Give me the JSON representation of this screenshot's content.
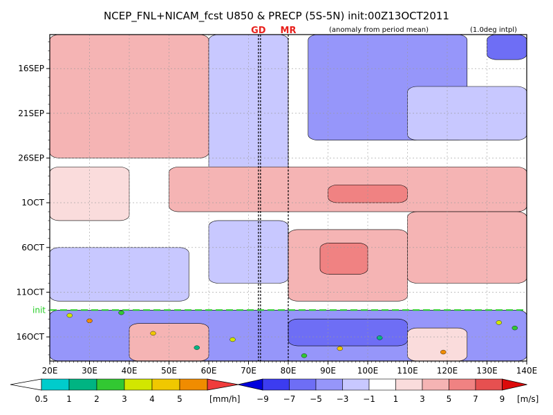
{
  "chart_data": {
    "type": "heatmap",
    "title": "NCEP_FNL+NICAM_fcst U850 & PRECP (5S-5N) init:00Z13OCT2011",
    "subtitle": "(anomaly from period mean)",
    "note": "(1.0deg intpl)",
    "x_ticks": [
      "20E",
      "30E",
      "40E",
      "50E",
      "60E",
      "70E",
      "80E",
      "90E",
      "100E",
      "110E",
      "120E",
      "130E",
      "140E"
    ],
    "x_range": [
      20,
      140
    ],
    "y_ticks": [
      "16SEP",
      "21SEP",
      "26SEP",
      "1OCT",
      "6OCT",
      "11OCT",
      "16OCT"
    ],
    "y_range_days": [
      12.2,
      48.7
    ],
    "y_tick_days": [
      16,
      21,
      26,
      31,
      36,
      41,
      46
    ],
    "init_label": "init",
    "init_day": 43,
    "markers": [
      {
        "label": "GD",
        "x": 72.5
      },
      {
        "label": "MR",
        "x": 80
      }
    ],
    "precip_colorbar": {
      "labels": [
        "0.5",
        "1",
        "2",
        "3",
        "4",
        "5"
      ],
      "unit": "[mm/h]",
      "colors": [
        "#00cccc",
        "#00b482",
        "#32c832",
        "#d2e600",
        "#f0c800",
        "#f08c00",
        "#f03c3c"
      ]
    },
    "wind_colorbar": {
      "labels": [
        "−9",
        "−7",
        "−5",
        "−3",
        "−1",
        "1",
        "3",
        "5",
        "7",
        "9"
      ],
      "unit": "[m/s]",
      "colors": [
        "#0000dc",
        "#3c3cf0",
        "#6e6ef5",
        "#9696fa",
        "#c8c8ff",
        "#ffffff",
        "#fadcdc",
        "#f5b4b4",
        "#f08282",
        "#e65050",
        "#dc0a0a"
      ]
    },
    "colors": {
      "init_line": "#22cc22",
      "marker_line": "#000000",
      "marker_label": "#e8201c"
    },
    "regions": [
      {
        "x1": 20,
        "x2": 140,
        "d1": 12.2,
        "d2": 48.7,
        "v": 0
      },
      {
        "x1": 20,
        "x2": 60,
        "d1": 12.2,
        "d2": 26,
        "v": 3
      },
      {
        "x1": 85,
        "x2": 125,
        "d1": 12.2,
        "d2": 24,
        "v": -4
      },
      {
        "x1": 130,
        "x2": 140,
        "d1": 12.2,
        "d2": 15,
        "v": -6
      },
      {
        "x1": 60,
        "x2": 80,
        "d1": 12.2,
        "d2": 28,
        "v": -3
      },
      {
        "x1": 110,
        "x2": 140,
        "d1": 18,
        "d2": 24,
        "v": -2
      },
      {
        "x1": 20,
        "x2": 40,
        "d1": 27,
        "d2": 33,
        "v": 1
      },
      {
        "x1": 50,
        "x2": 140,
        "d1": 27,
        "d2": 32,
        "v": 3
      },
      {
        "x1": 90,
        "x2": 110,
        "d1": 29,
        "d2": 31,
        "v": 5
      },
      {
        "x1": 60,
        "x2": 80,
        "d1": 33,
        "d2": 40,
        "v": -3
      },
      {
        "x1": 80,
        "x2": 110,
        "d1": 34,
        "d2": 42,
        "v": 3
      },
      {
        "x1": 88,
        "x2": 100,
        "d1": 35.5,
        "d2": 39,
        "v": 5
      },
      {
        "x1": 20,
        "x2": 55,
        "d1": 36,
        "d2": 42,
        "v": -2
      },
      {
        "x1": 110,
        "x2": 140,
        "d1": 32,
        "d2": 40,
        "v": 3
      },
      {
        "x1": 20,
        "x2": 140,
        "d1": 43,
        "d2": 48.7,
        "v": -5
      },
      {
        "x1": 80,
        "x2": 110,
        "d1": 44,
        "d2": 47,
        "v": -7
      },
      {
        "x1": 40,
        "x2": 60,
        "d1": 44.5,
        "d2": 48.7,
        "v": 3
      },
      {
        "x1": 110,
        "x2": 125,
        "d1": 45,
        "d2": 48.7,
        "v": 1
      }
    ],
    "precip_spots": [
      {
        "x": 25,
        "d": 43.6,
        "v": 3
      },
      {
        "x": 30,
        "d": 44.2,
        "v": 5
      },
      {
        "x": 38,
        "d": 43.3,
        "v": 2
      },
      {
        "x": 46,
        "d": 45.6,
        "v": 4
      },
      {
        "x": 57,
        "d": 47.2,
        "v": 1
      },
      {
        "x": 66,
        "d": 46.3,
        "v": 3
      },
      {
        "x": 84,
        "d": 48.1,
        "v": 2
      },
      {
        "x": 93,
        "d": 47.3,
        "v": 4
      },
      {
        "x": 103,
        "d": 46.1,
        "v": 1
      },
      {
        "x": 119,
        "d": 47.7,
        "v": 5
      },
      {
        "x": 133,
        "d": 44.4,
        "v": 3
      },
      {
        "x": 137,
        "d": 45.0,
        "v": 2
      }
    ]
  }
}
